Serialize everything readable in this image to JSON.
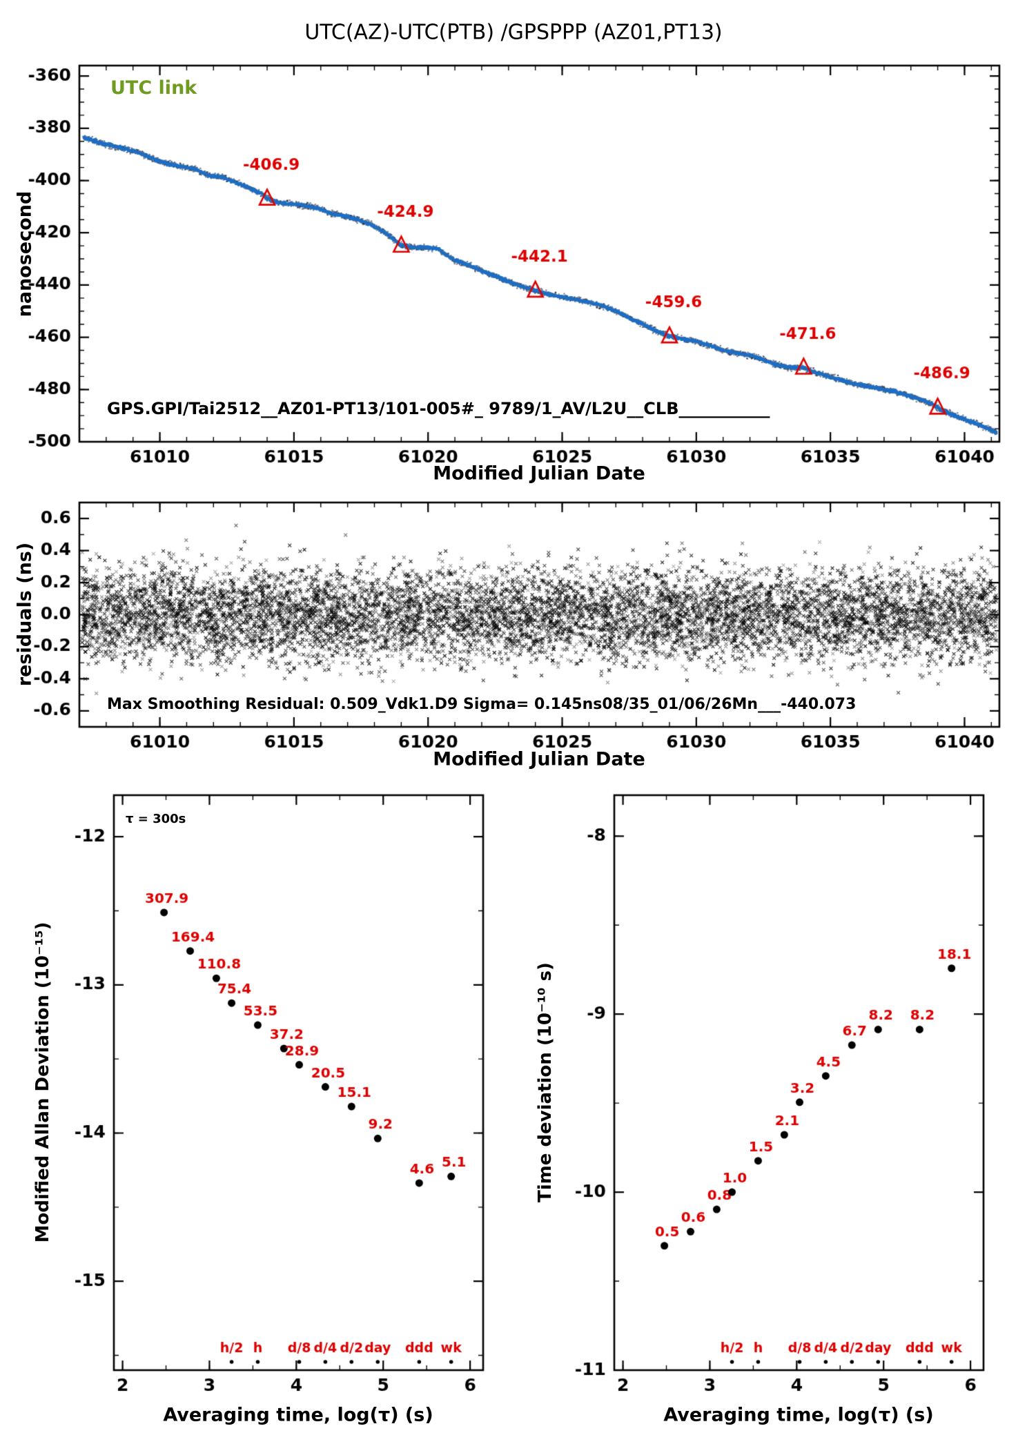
{
  "figure": {
    "title": "UTC(AZ)-UTC(PTB)  /GPSPPP  (AZ01,PT13)",
    "accent_red": "#dd0000",
    "accent_blue": "#1e6fc5",
    "accent_green": "#6e9b20",
    "foreground": "#000000",
    "background": "#ffffff"
  },
  "chart_data": [
    {
      "id": "phase-difference",
      "type": "line",
      "xlabel": "Modified Julian Date",
      "ylabel": "nanosecond",
      "annotation": "UTC link",
      "inline_text": "GPS.GPI/Tai2512__AZ01-PT13/101-005#_  9789/1_AV/L2U__CLB___________",
      "xlim": [
        61007,
        61041.3
      ],
      "ylim": [
        -500,
        -356
      ],
      "xticks": [
        61010,
        61015,
        61020,
        61025,
        61030,
        61035,
        61040
      ],
      "yticks": [
        -360,
        -380,
        -400,
        -420,
        -440,
        -460,
        -480,
        -500
      ],
      "markers": [
        {
          "x": 61014,
          "y": -406.9,
          "label": "-406.9"
        },
        {
          "x": 61019,
          "y": -424.9,
          "label": "-424.9"
        },
        {
          "x": 61024,
          "y": -442.1,
          "label": "-442.1"
        },
        {
          "x": 61029,
          "y": -459.6,
          "label": "-459.6"
        },
        {
          "x": 61034,
          "y": -471.6,
          "label": "-471.6"
        },
        {
          "x": 61039,
          "y": -486.9,
          "label": "-486.9"
        }
      ],
      "series_anchors": [
        [
          61007.15,
          -383.5
        ],
        [
          61007.8,
          -385.6
        ],
        [
          61008.6,
          -387.6
        ],
        [
          61009.3,
          -389.6
        ],
        [
          61009.8,
          -392.0
        ],
        [
          61010.3,
          -393.6
        ],
        [
          61010.8,
          -394.6
        ],
        [
          61011.3,
          -395.6
        ],
        [
          61011.8,
          -398.0
        ],
        [
          61012.3,
          -398.6
        ],
        [
          61012.8,
          -400.6
        ],
        [
          61013.3,
          -402.6
        ],
        [
          61013.8,
          -405.0
        ],
        [
          61014.0,
          -406.9
        ],
        [
          61014.4,
          -408.4
        ],
        [
          61014.9,
          -409.0
        ],
        [
          61015.4,
          -409.6
        ],
        [
          61015.9,
          -410.6
        ],
        [
          61016.4,
          -412.6
        ],
        [
          61016.9,
          -413.6
        ],
        [
          61017.4,
          -415.0
        ],
        [
          61017.9,
          -417.0
        ],
        [
          61018.4,
          -420.0
        ],
        [
          61018.9,
          -424.0
        ],
        [
          61019.0,
          -424.9
        ],
        [
          61019.4,
          -425.6
        ],
        [
          61019.9,
          -425.6
        ],
        [
          61020.4,
          -426.2
        ],
        [
          61020.7,
          -428.6
        ],
        [
          61021.0,
          -430.6
        ],
        [
          61021.5,
          -432.2
        ],
        [
          61022.0,
          -434.6
        ],
        [
          61022.5,
          -436.6
        ],
        [
          61023.0,
          -438.6
        ],
        [
          61023.5,
          -440.6
        ],
        [
          61024.0,
          -442.1
        ],
        [
          61024.5,
          -443.6
        ],
        [
          61025.0,
          -444.6
        ],
        [
          61025.5,
          -445.6
        ],
        [
          61026.0,
          -446.6
        ],
        [
          61026.5,
          -448.0
        ],
        [
          61027.0,
          -450.0
        ],
        [
          61027.5,
          -452.6
        ],
        [
          61028.0,
          -455.0
        ],
        [
          61028.5,
          -457.6
        ],
        [
          61029.0,
          -459.6
        ],
        [
          61029.5,
          -460.6
        ],
        [
          61030.0,
          -461.6
        ],
        [
          61030.5,
          -463.0
        ],
        [
          61031.0,
          -465.0
        ],
        [
          61031.5,
          -466.0
        ],
        [
          61032.0,
          -467.0
        ],
        [
          61032.5,
          -468.6
        ],
        [
          61033.0,
          -470.6
        ],
        [
          61033.5,
          -471.6
        ],
        [
          61034.0,
          -471.6
        ],
        [
          61034.3,
          -473.0
        ],
        [
          61034.8,
          -474.6
        ],
        [
          61035.3,
          -476.0
        ],
        [
          61035.8,
          -477.6
        ],
        [
          61036.3,
          -478.6
        ],
        [
          61036.8,
          -479.6
        ],
        [
          61037.3,
          -480.6
        ],
        [
          61037.8,
          -482.0
        ],
        [
          61038.3,
          -483.6
        ],
        [
          61038.8,
          -485.6
        ],
        [
          61039.0,
          -486.9
        ],
        [
          61039.3,
          -488.6
        ],
        [
          61039.8,
          -490.6
        ],
        [
          61040.3,
          -492.6
        ],
        [
          61040.8,
          -494.6
        ],
        [
          61041.2,
          -496.5
        ]
      ]
    },
    {
      "id": "residuals",
      "type": "scatter",
      "xlabel": "Modified Julian Date",
      "ylabel": "residuals (ns)",
      "note": "Max Smoothing Residual: 0.509_Vdk1.D9  Sigma= 0.145ns08/35_01/06/26Mn___-440.073",
      "max_residual": 0.509,
      "sigma": 0.145,
      "xlim": [
        61007,
        61041.3
      ],
      "ylim": [
        -0.7,
        0.7
      ],
      "xticks": [
        61010,
        61015,
        61020,
        61025,
        61030,
        61035,
        61040
      ],
      "yticks": [
        -0.6,
        -0.4,
        -0.2,
        0,
        0.2,
        0.4,
        0.6
      ],
      "n_points": 8500
    },
    {
      "id": "mdev",
      "type": "scatter",
      "xlabel": "Averaging time, log(τ) (s)",
      "ylabel": "Modified Allan Deviation (10⁻¹⁵)",
      "note": "τ = 300s",
      "unit_exp": -15,
      "xlim": [
        1.9,
        6.15
      ],
      "ylim": [
        -15.6,
        -11.72
      ],
      "xticks": [
        2,
        3,
        4,
        5,
        6
      ],
      "yticks": [
        -12,
        -13,
        -14,
        -15
      ],
      "log_tau": [
        2.477,
        2.778,
        3.079,
        3.255,
        3.556,
        3.857,
        4.033,
        4.334,
        4.635,
        4.937,
        5.414,
        5.782
      ],
      "values": [
        "307.9",
        "169.4",
        "110.8",
        "75.4",
        "53.5",
        "37.2",
        "28.9",
        "20.5",
        "15.1",
        "9.2",
        "4.6",
        "5.1"
      ],
      "time_marks": [
        {
          "label": "h/2",
          "log_tau": 3.255
        },
        {
          "label": "h",
          "log_tau": 3.556
        },
        {
          "label": "d/8",
          "log_tau": 4.033
        },
        {
          "label": "d/4",
          "log_tau": 4.334
        },
        {
          "label": "d/2",
          "log_tau": 4.635
        },
        {
          "label": "day",
          "log_tau": 4.937
        },
        {
          "label": "ddd",
          "log_tau": 5.414
        },
        {
          "label": "wk",
          "log_tau": 5.782
        }
      ]
    },
    {
      "id": "tdev",
      "type": "scatter",
      "xlabel": "Averaging time, log(τ) (s)",
      "ylabel": "Time deviation (10⁻¹⁰ s)",
      "unit_exp": -10,
      "xlim": [
        1.9,
        6.15
      ],
      "ylim": [
        -11,
        -7.77
      ],
      "xticks": [
        2,
        3,
        4,
        5,
        6
      ],
      "yticks": [
        -8,
        -9,
        -10,
        -11
      ],
      "log_tau": [
        2.477,
        2.778,
        3.079,
        3.255,
        3.556,
        3.857,
        4.033,
        4.334,
        4.635,
        4.937,
        5.414,
        5.782
      ],
      "values": [
        "0.5",
        "0.6",
        "0.8",
        "1.0",
        "1.5",
        "2.1",
        "3.2",
        "4.5",
        "6.7",
        "8.2",
        "8.2",
        "18.1"
      ],
      "time_marks": [
        {
          "label": "h/2",
          "log_tau": 3.255
        },
        {
          "label": "h",
          "log_tau": 3.556
        },
        {
          "label": "d/8",
          "log_tau": 4.033
        },
        {
          "label": "d/4",
          "log_tau": 4.334
        },
        {
          "label": "d/2",
          "log_tau": 4.635
        },
        {
          "label": "day",
          "log_tau": 4.937
        },
        {
          "label": "ddd",
          "log_tau": 5.414
        },
        {
          "label": "wk",
          "log_tau": 5.782
        }
      ]
    }
  ]
}
